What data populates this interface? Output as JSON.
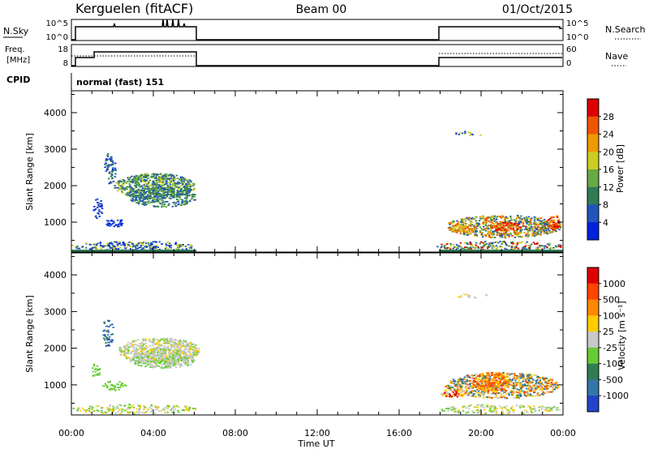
{
  "header": {
    "station": "Kerguelen (fitACF)",
    "beam": "Beam 00",
    "date": "01/Oct/2015"
  },
  "sky_panel": {
    "left_label": "N.Sky",
    "right_label": "N.Search",
    "left_ticks": [
      "10^5",
      "10^0"
    ],
    "right_ticks": [
      "10^5",
      "10^0"
    ]
  },
  "freq_panel": {
    "left_label_1": "Freq.",
    "left_label_2": "[MHz]",
    "right_label": "Nave",
    "left_ticks": [
      "18",
      "8"
    ],
    "right_ticks": [
      "60",
      "0"
    ]
  },
  "cpid": {
    "label": "CPID",
    "value": "normal (fast) 151"
  },
  "chart_data": [
    {
      "type": "heatmap",
      "ylabel": "Slant Range [km]",
      "yticks": [
        "4000",
        "3000",
        "2000",
        "1000"
      ],
      "xticks": [
        "00:00",
        "04:00",
        "08:00",
        "12:00",
        "16:00",
        "20:00",
        "00:00"
      ],
      "colorbar_label": "Power [dB]",
      "colorbar_ticks": [
        "28",
        "24",
        "20",
        "16",
        "12",
        "8",
        "4"
      ],
      "colors": [
        "#0022dd",
        "#2255bb",
        "#2f7c55",
        "#66aa44",
        "#cccc22",
        "#ee9900",
        "#ee5500",
        "#dd0000"
      ]
    },
    {
      "type": "heatmap",
      "ylabel": "Slant Range [km]",
      "yticks": [
        "4000",
        "3000",
        "2000",
        "1000"
      ],
      "xticks": [
        "00:00",
        "04:00",
        "08:00",
        "12:00",
        "16:00",
        "20:00",
        "00:00"
      ],
      "xlabel": "Time UT",
      "colorbar_label": "Velocity [m s⁻¹]",
      "colorbar_ticks": [
        "1000",
        "500",
        "100",
        "25",
        "-25",
        "-100",
        "-500",
        "-1000"
      ],
      "colors": [
        "#2244cc",
        "#3377aa",
        "#2f7c55",
        "#66cc33",
        "#c8c8c8",
        "#ffcc00",
        "#ff8800",
        "#ff4400",
        "#dd0000"
      ]
    }
  ]
}
